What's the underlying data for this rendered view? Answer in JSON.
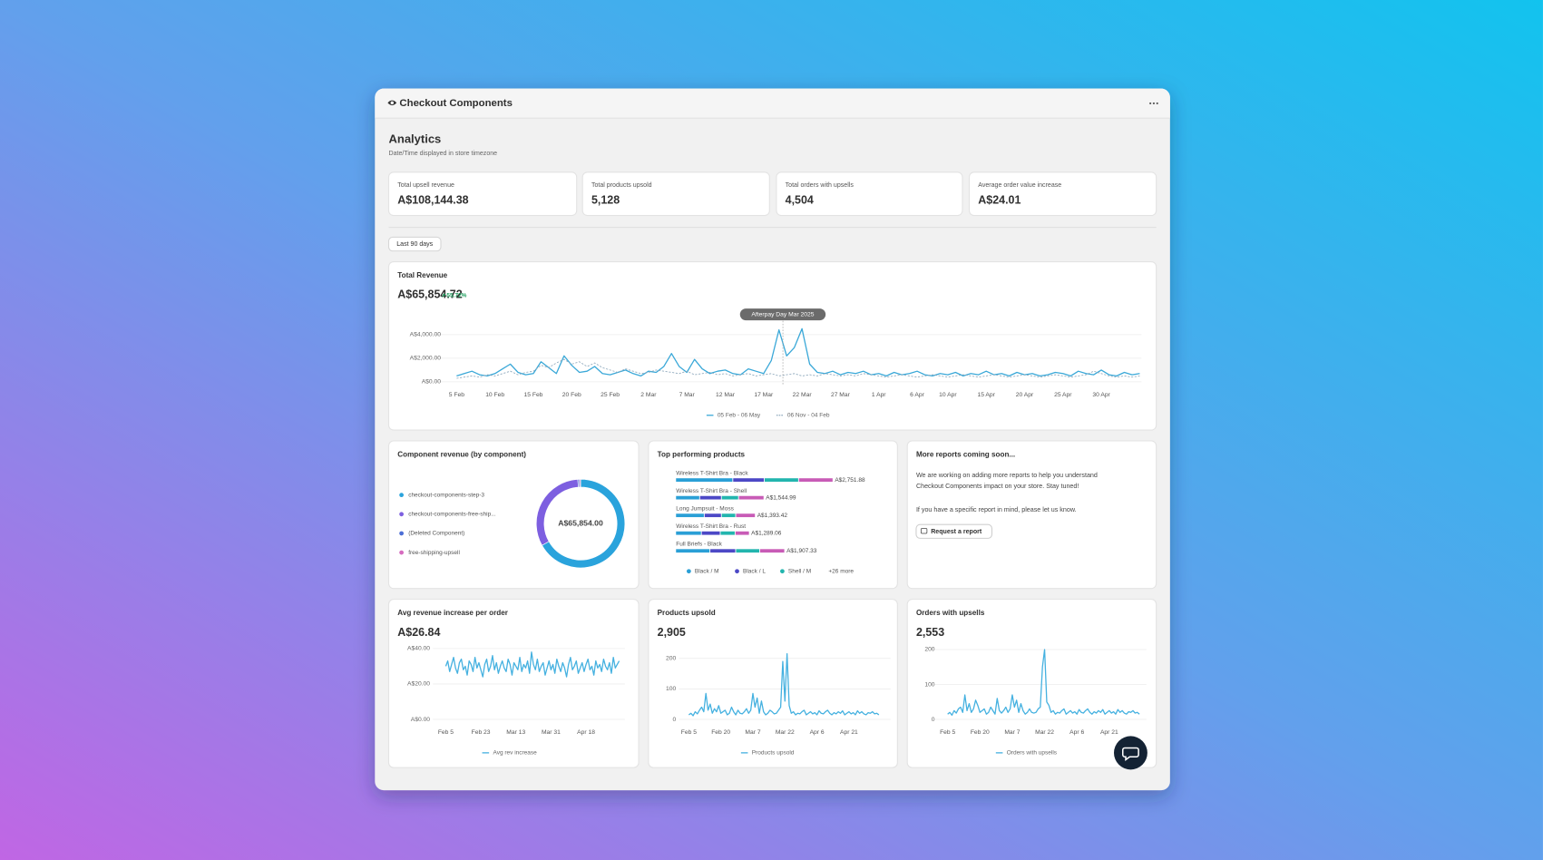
{
  "header": {
    "title": "Checkout Components"
  },
  "page": {
    "title": "Analytics",
    "subtitle": "Date/Time displayed in store timezone"
  },
  "stats": [
    {
      "label": "Total upsell revenue",
      "value": "A$108,144.38"
    },
    {
      "label": "Total products upsold",
      "value": "5,128"
    },
    {
      "label": "Total orders with upsells",
      "value": "4,504"
    },
    {
      "label": "Average order value increase",
      "value": "A$24.01"
    }
  ],
  "filter": "Last 90 days",
  "reports": {
    "title": "More reports coming soon...",
    "body": [
      "We are working on adding more reports to help you understand",
      "Checkout Components impact on your store. Stay tuned!",
      "If you have a specific report in mind, please let us know."
    ],
    "button": "Request a report"
  },
  "chart_data": [
    {
      "type": "line",
      "title": "Total Revenue",
      "headline": "A$65,854.72",
      "change": "55.72%",
      "annotation": "Afterpay Day Mar 2025",
      "categories": [
        "5 Feb",
        null,
        null,
        null,
        null,
        "10 Feb",
        null,
        null,
        null,
        null,
        "15 Feb",
        null,
        null,
        null,
        null,
        "20 Feb",
        null,
        null,
        null,
        null,
        "25 Feb",
        null,
        null,
        null,
        null,
        "2 Mar",
        null,
        null,
        null,
        null,
        "7 Mar",
        null,
        null,
        null,
        null,
        "12 Mar",
        null,
        null,
        null,
        null,
        "17 Mar",
        null,
        null,
        null,
        null,
        "22 Mar",
        null,
        null,
        null,
        null,
        "27 Mar",
        null,
        null,
        null,
        null,
        "1 Apr",
        null,
        null,
        null,
        null,
        "6 Apr",
        null,
        null,
        null,
        "10 Apr",
        null,
        null,
        null,
        null,
        "15 Apr",
        null,
        null,
        null,
        null,
        "20 Apr",
        null,
        null,
        null,
        null,
        "25 Apr",
        null,
        null,
        null,
        null,
        "30 Apr",
        null,
        null,
        null,
        null,
        null
      ],
      "series": [
        {
          "name": "05 Feb - 06 May",
          "color": "#3aa8d8",
          "style": "solid",
          "values": [
            500,
            700,
            900,
            600,
            500,
            700,
            1100,
            1500,
            800,
            600,
            700,
            1700,
            1200,
            700,
            2200,
            1400,
            800,
            900,
            1300,
            700,
            600,
            800,
            1000,
            700,
            500,
            900,
            800,
            1300,
            2400,
            1300,
            800,
            1900,
            1100,
            700,
            900,
            1000,
            700,
            600,
            1100,
            900,
            700,
            1800,
            4400,
            2200,
            2900,
            4500,
            1500,
            800,
            700,
            900,
            600,
            800,
            700,
            900,
            600,
            700,
            500,
            800,
            600,
            700,
            900,
            600,
            500,
            700,
            600,
            800,
            500,
            700,
            600,
            900,
            600,
            700,
            500,
            800,
            600,
            700,
            500,
            600,
            800,
            700,
            500,
            900,
            700,
            600,
            1000,
            600,
            500,
            800,
            600,
            700
          ]
        },
        {
          "name": "06 Nov - 04 Feb",
          "color": "#8fa9bd",
          "style": "dashed",
          "values": [
            300,
            400,
            500,
            400,
            600,
            500,
            700,
            900,
            600,
            800,
            900,
            1400,
            1200,
            1600,
            1900,
            1500,
            1700,
            1300,
            1600,
            1200,
            1000,
            800,
            1100,
            900,
            700,
            800,
            1000,
            900,
            800,
            700,
            900,
            600,
            700,
            800,
            600,
            700,
            500,
            600,
            700,
            500,
            600,
            700,
            500,
            600,
            700,
            500,
            600,
            500,
            700,
            600,
            500,
            600,
            500,
            700,
            600,
            500,
            400,
            500,
            600,
            500,
            400,
            500,
            600,
            500,
            400,
            500,
            600,
            500,
            400,
            500,
            600,
            500,
            400,
            500,
            600,
            500,
            400,
            500,
            600,
            500,
            400,
            500,
            600,
            900,
            700,
            500,
            400,
            500,
            400,
            500
          ]
        }
      ],
      "ylim": [
        0,
        4600
      ],
      "yticks": [
        {
          "value": 0,
          "label": "A$0.00"
        },
        {
          "value": 2000,
          "label": "A$2,000.00"
        },
        {
          "value": 4000,
          "label": "A$4,000.00"
        }
      ],
      "grid": true
    },
    {
      "type": "donut",
      "title": "Component revenue (by component)",
      "center_label": "A$65,854.00",
      "categories": [
        "checkout-components-step-3",
        "checkout-components-free-ship...",
        "(Deleted Component)",
        "free-shipping-upsell"
      ],
      "values": [
        44000,
        21200,
        400,
        254
      ],
      "colors": [
        "#2aa3dc",
        "#7d5fe0",
        "#4c6fd6",
        "#d66bbf"
      ]
    },
    {
      "type": "hbar_stacked",
      "title": "Top performing products",
      "categories": [
        "Wireless T-Shirt Bra - Black",
        "Wireless T-Shirt Bra - Shell",
        "Long Jumpsuit - Moss",
        "Wireless T-Shirt Bra - Rust",
        "Full Briefs - Black"
      ],
      "series": [
        {
          "name": "Black / M",
          "color": "#2a9fd6",
          "values": [
            1000,
            420,
            500,
            450,
            600
          ]
        },
        {
          "name": "Black / L",
          "color": "#4c48c6",
          "values": [
            550,
            380,
            300,
            330,
            450
          ]
        },
        {
          "name": "Shell / M",
          "color": "#22b5ae",
          "values": [
            600,
            300,
            250,
            260,
            420
          ]
        },
        {
          "name": "+26 more",
          "color": "#c85bb6",
          "values": [
            601.88,
            444.99,
            343.42,
            249.06,
            437.33
          ]
        }
      ],
      "value_labels": [
        "A$2,751.88",
        "A$1,544.99",
        "A$1,393.42",
        "A$1,289.06",
        "A$1,907.33"
      ]
    },
    {
      "type": "line",
      "title": "Avg revenue increase per order",
      "headline": "A$26.84",
      "categories": [
        "Feb 5",
        null,
        null,
        null,
        null,
        null,
        null,
        null,
        null,
        null,
        null,
        null,
        null,
        null,
        null,
        null,
        null,
        null,
        "Feb 23",
        null,
        null,
        null,
        null,
        null,
        null,
        null,
        null,
        null,
        null,
        null,
        null,
        null,
        null,
        null,
        null,
        null,
        "Mar 13",
        null,
        null,
        null,
        null,
        null,
        null,
        null,
        null,
        null,
        null,
        null,
        null,
        null,
        null,
        null,
        null,
        null,
        "Mar 31",
        null,
        null,
        null,
        null,
        null,
        null,
        null,
        null,
        null,
        null,
        null,
        null,
        null,
        null,
        null,
        null,
        null,
        "Apr 18",
        null,
        null,
        null,
        null,
        null,
        null,
        null,
        null,
        null,
        null,
        null,
        null,
        null,
        null,
        null,
        null,
        null
      ],
      "series": [
        {
          "name": "Avg rev increase",
          "color": "#45b1e0",
          "style": "solid",
          "values": [
            30,
            33,
            27,
            31,
            35,
            29,
            26,
            32,
            34,
            28,
            30,
            25,
            33,
            31,
            27,
            35,
            29,
            32,
            28,
            24,
            31,
            34,
            27,
            30,
            36,
            28,
            32,
            26,
            30,
            33,
            29,
            27,
            34,
            31,
            25,
            32,
            30,
            28,
            35,
            27,
            31,
            29,
            33,
            26,
            38,
            31,
            28,
            34,
            27,
            30,
            32,
            25,
            29,
            33,
            28,
            31,
            26,
            34,
            30,
            27,
            32,
            29,
            24,
            31,
            35,
            28,
            30,
            33,
            26,
            29,
            32,
            27,
            31,
            34,
            28,
            30,
            25,
            33,
            29,
            31,
            27,
            34,
            30,
            28,
            32,
            26,
            35,
            29,
            31,
            33
          ]
        }
      ],
      "ylim": [
        0,
        40
      ],
      "yticks": [
        {
          "value": 0,
          "label": "A$0.00"
        },
        {
          "value": 20,
          "label": "A$20.00"
        },
        {
          "value": 40,
          "label": "A$40.00"
        }
      ],
      "grid": true
    },
    {
      "type": "line",
      "title": "Products upsold",
      "headline": "2,905",
      "categories": [
        "Feb 5",
        null,
        null,
        null,
        null,
        null,
        null,
        null,
        null,
        null,
        null,
        null,
        null,
        null,
        null,
        "Feb 20",
        null,
        null,
        null,
        null,
        null,
        null,
        null,
        null,
        null,
        null,
        null,
        null,
        null,
        null,
        "Mar 7",
        null,
        null,
        null,
        null,
        null,
        null,
        null,
        null,
        null,
        null,
        null,
        null,
        null,
        null,
        "Mar 22",
        null,
        null,
        null,
        null,
        null,
        null,
        null,
        null,
        null,
        null,
        null,
        null,
        null,
        null,
        "Apr 6",
        null,
        null,
        null,
        null,
        null,
        null,
        null,
        null,
        null,
        null,
        null,
        null,
        null,
        null,
        "Apr 21",
        null,
        null,
        null,
        null,
        null,
        null,
        null,
        null,
        null,
        null,
        null,
        null,
        null,
        null
      ],
      "series": [
        {
          "name": "Products upsold",
          "color": "#45b1e0",
          "style": "solid",
          "values": [
            15,
            20,
            12,
            25,
            18,
            30,
            40,
            25,
            85,
            30,
            50,
            20,
            35,
            25,
            45,
            20,
            25,
            30,
            15,
            20,
            40,
            25,
            15,
            30,
            20,
            18,
            25,
            35,
            20,
            30,
            85,
            40,
            70,
            20,
            60,
            25,
            15,
            20,
            30,
            25,
            18,
            20,
            30,
            40,
            190,
            60,
            215,
            45,
            20,
            25,
            15,
            20,
            18,
            25,
            30,
            15,
            20,
            25,
            18,
            22,
            15,
            28,
            20,
            18,
            25,
            30,
            20,
            15,
            22,
            18,
            25,
            20,
            28,
            15,
            20,
            25,
            18,
            22,
            15,
            28,
            20,
            25,
            18,
            15,
            22,
            20,
            25,
            18,
            20,
            15
          ]
        }
      ],
      "ylim": [
        0,
        230
      ],
      "yticks": [
        0,
        100,
        200
      ],
      "grid": true
    },
    {
      "type": "line",
      "title": "Orders with upsells",
      "headline": "2,553",
      "categories": [
        "Feb 5",
        null,
        null,
        null,
        null,
        null,
        null,
        null,
        null,
        null,
        null,
        null,
        null,
        null,
        null,
        "Feb 20",
        null,
        null,
        null,
        null,
        null,
        null,
        null,
        null,
        null,
        null,
        null,
        null,
        null,
        null,
        "Mar 7",
        null,
        null,
        null,
        null,
        null,
        null,
        null,
        null,
        null,
        null,
        null,
        null,
        null,
        null,
        "Mar 22",
        null,
        null,
        null,
        null,
        null,
        null,
        null,
        null,
        null,
        null,
        null,
        null,
        null,
        null,
        "Apr 6",
        null,
        null,
        null,
        null,
        null,
        null,
        null,
        null,
        null,
        null,
        null,
        null,
        null,
        null,
        "Apr 21",
        null,
        null,
        null,
        null,
        null,
        null,
        null,
        null,
        null,
        null,
        null,
        null,
        null,
        null
      ],
      "series": [
        {
          "name": "Orders with upsells",
          "color": "#45b1e0",
          "style": "solid",
          "values": [
            15,
            20,
            12,
            25,
            18,
            30,
            35,
            20,
            70,
            25,
            45,
            20,
            30,
            55,
            40,
            20,
            25,
            30,
            15,
            20,
            35,
            25,
            15,
            60,
            25,
            18,
            25,
            35,
            20,
            30,
            70,
            35,
            55,
            20,
            45,
            25,
            15,
            20,
            30,
            20,
            18,
            20,
            30,
            35,
            150,
            200,
            50,
            40,
            20,
            25,
            15,
            20,
            18,
            25,
            30,
            15,
            20,
            25,
            18,
            22,
            15,
            28,
            20,
            18,
            25,
            30,
            20,
            15,
            22,
            18,
            25,
            20,
            28,
            15,
            20,
            25,
            18,
            22,
            15,
            28,
            20,
            25,
            18,
            15,
            22,
            20,
            25,
            18,
            20,
            15
          ]
        }
      ],
      "ylim": [
        0,
        200
      ],
      "yticks": [
        0,
        100,
        200
      ],
      "grid": true
    }
  ]
}
